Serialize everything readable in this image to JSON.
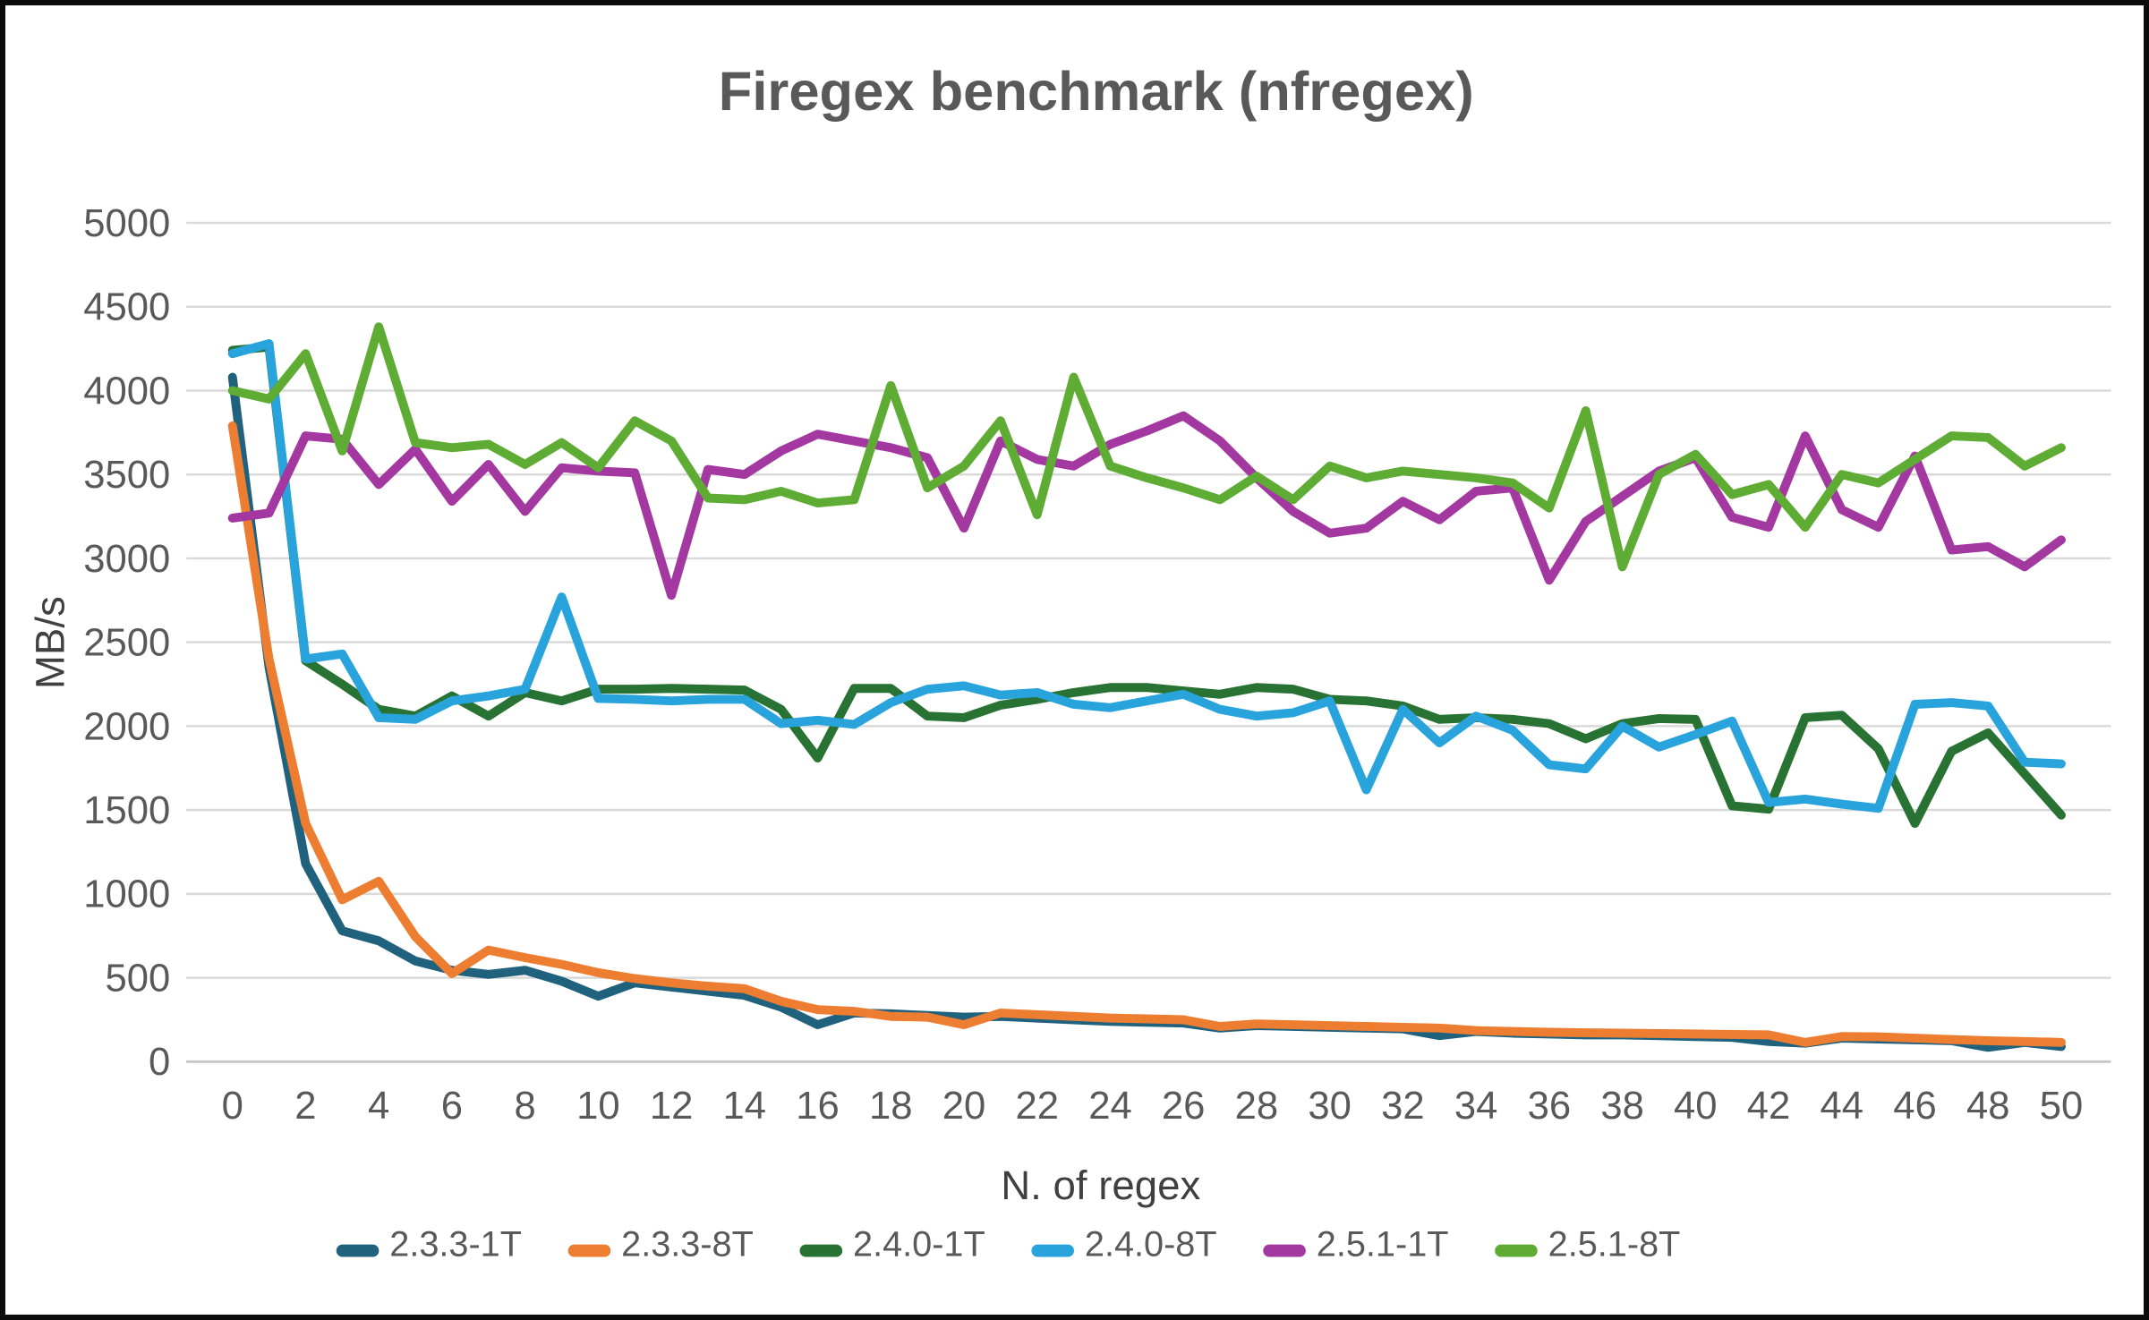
{
  "chart": {
    "title": "Firegex benchmark (nfregex)",
    "ylabel": "MB/s",
    "xlabel": "N. of regex"
  },
  "chart_data": {
    "type": "line",
    "title": "Firegex benchmark (nfregex)",
    "xlabel": "N. of regex",
    "ylabel": "MB/s",
    "xlim": [
      0,
      50
    ],
    "ylim": [
      0,
      5000
    ],
    "grid": true,
    "legend_position": "bottom",
    "x_ticks": [
      0,
      2,
      4,
      6,
      8,
      10,
      12,
      14,
      16,
      18,
      20,
      22,
      24,
      26,
      28,
      30,
      32,
      34,
      36,
      38,
      40,
      42,
      44,
      46,
      48,
      50
    ],
    "y_ticks": [
      0,
      500,
      1000,
      1500,
      2000,
      2500,
      3000,
      3500,
      4000,
      4500,
      5000
    ],
    "x": [
      0,
      1,
      2,
      3,
      4,
      5,
      6,
      7,
      8,
      9,
      10,
      11,
      12,
      13,
      14,
      15,
      16,
      17,
      18,
      19,
      20,
      21,
      22,
      23,
      24,
      25,
      26,
      27,
      28,
      29,
      30,
      31,
      32,
      33,
      34,
      35,
      36,
      37,
      38,
      39,
      40,
      41,
      42,
      43,
      44,
      45,
      46,
      47,
      48,
      49,
      50
    ],
    "series": [
      {
        "name": "2.3.3-1T",
        "color": "#20627D",
        "values": [
          4080,
          2350,
          1180,
          780,
          720,
          600,
          545,
          520,
          545,
          480,
          390,
          470,
          445,
          420,
          395,
          325,
          220,
          290,
          285,
          275,
          265,
          270,
          260,
          250,
          240,
          235,
          230,
          200,
          215,
          210,
          205,
          200,
          195,
          155,
          180,
          170,
          165,
          160,
          160,
          155,
          150,
          145,
          120,
          110,
          140,
          135,
          130,
          125,
          85,
          115,
          90
        ]
      },
      {
        "name": "2.3.3-8T",
        "color": "#ED7D31",
        "values": [
          3790,
          2400,
          1420,
          965,
          1075,
          745,
          525,
          665,
          620,
          580,
          530,
          495,
          470,
          450,
          435,
          360,
          310,
          300,
          270,
          265,
          220,
          290,
          280,
          270,
          260,
          255,
          250,
          210,
          225,
          220,
          215,
          210,
          205,
          200,
          185,
          180,
          175,
          172,
          170,
          167,
          165,
          162,
          160,
          115,
          150,
          148,
          140,
          132,
          125,
          120,
          115
        ]
      },
      {
        "name": "2.4.0-1T",
        "color": "#287233",
        "values": [
          4240,
          4260,
          2390,
          2250,
          2100,
          2060,
          2180,
          2060,
          2200,
          2150,
          2220,
          2220,
          2225,
          2220,
          2215,
          2100,
          1810,
          2225,
          2225,
          2060,
          2050,
          2125,
          2160,
          2200,
          2230,
          2230,
          2210,
          2190,
          2230,
          2220,
          2160,
          2150,
          2120,
          2040,
          2050,
          2040,
          2015,
          1925,
          2015,
          2045,
          2040,
          1525,
          1505,
          2050,
          2065,
          1865,
          1420,
          1850,
          1960,
          1715,
          1470
        ]
      },
      {
        "name": "2.4.0-8T",
        "color": "#29A3DC",
        "values": [
          4220,
          4280,
          2400,
          2430,
          2050,
          2040,
          2150,
          2180,
          2220,
          2770,
          2165,
          2160,
          2150,
          2160,
          2160,
          2015,
          2035,
          2010,
          2140,
          2220,
          2240,
          2185,
          2200,
          2130,
          2110,
          2150,
          2190,
          2100,
          2060,
          2080,
          2150,
          1620,
          2100,
          1900,
          2060,
          1975,
          1770,
          1745,
          2000,
          1875,
          1950,
          2030,
          1545,
          1565,
          1535,
          1510,
          2130,
          2140,
          2120,
          1785,
          1775
        ]
      },
      {
        "name": "2.5.1-1T",
        "color": "#A339A0",
        "values": [
          3240,
          3270,
          3730,
          3710,
          3440,
          3650,
          3340,
          3560,
          3280,
          3540,
          3520,
          3510,
          2780,
          3530,
          3500,
          3640,
          3740,
          3700,
          3660,
          3600,
          3180,
          3700,
          3590,
          3550,
          3680,
          3760,
          3850,
          3700,
          3480,
          3280,
          3150,
          3180,
          3340,
          3230,
          3400,
          3420,
          2870,
          3220,
          3370,
          3520,
          3600,
          3245,
          3185,
          3730,
          3290,
          3185,
          3610,
          3050,
          3070,
          2950,
          3110
        ]
      },
      {
        "name": "2.5.1-8T",
        "color": "#5FAC35",
        "values": [
          4000,
          3950,
          4220,
          3640,
          4380,
          3690,
          3660,
          3680,
          3560,
          3690,
          3540,
          3820,
          3700,
          3360,
          3350,
          3400,
          3330,
          3350,
          4030,
          3420,
          3550,
          3820,
          3260,
          4080,
          3550,
          3480,
          3420,
          3350,
          3490,
          3350,
          3550,
          3480,
          3520,
          3500,
          3480,
          3450,
          3300,
          3880,
          2950,
          3500,
          3620,
          3380,
          3440,
          3185,
          3500,
          3450,
          3590,
          3730,
          3720,
          3550,
          3660
        ]
      }
    ]
  },
  "style": {
    "grid_color": "#D9D9D9",
    "zero_line_color": "#C6C6C6",
    "text_color": "#595959",
    "line_width": 10
  }
}
